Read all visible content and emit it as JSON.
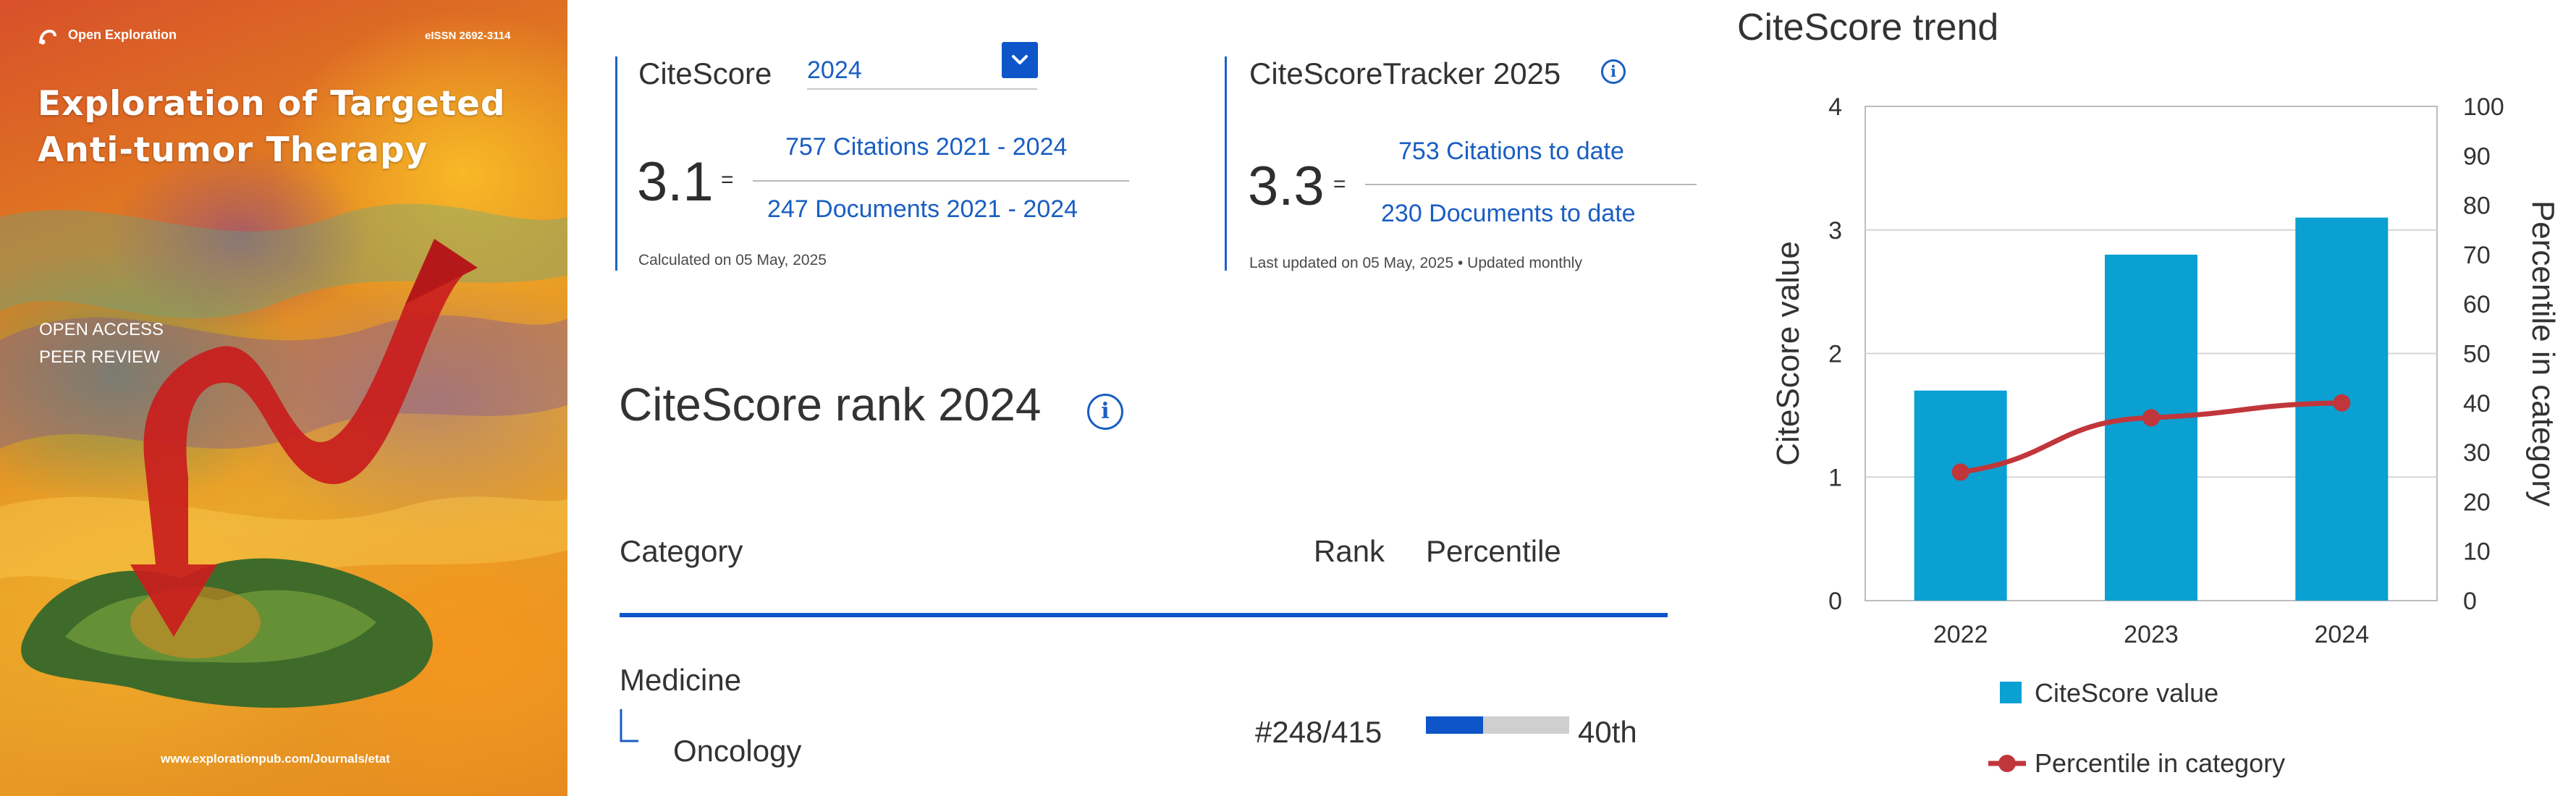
{
  "cover": {
    "publisher": "Open Exploration",
    "issn": "eISSN 2692-3114",
    "title_line1": "Exploration of Targeted",
    "title_line2": "Anti-tumor Therapy",
    "tag1": "OPEN ACCESS",
    "tag2": "PEER REVIEW",
    "url": "www.explorationpub.com/Journals/etat"
  },
  "citescore": {
    "label": "CiteScore",
    "year": "2024",
    "value": "3.1",
    "equals": "=",
    "numerator": "757 Citations 2021 - 2024",
    "denominator": "247 Documents 2021 - 2024",
    "note": "Calculated on 05 May, 2025"
  },
  "tracker": {
    "label": "CiteScoreTracker 2025",
    "value": "3.3",
    "equals": "=",
    "numerator": "753 Citations to date",
    "denominator": "230 Documents to date",
    "note": "Last updated on 05 May, 2025 • Updated monthly"
  },
  "rank": {
    "title": "CiteScore rank 2024",
    "headers": {
      "category": "Category",
      "rank": "Rank",
      "percentile": "Percentile"
    },
    "rows": [
      {
        "group": "Medicine",
        "category": "Oncology",
        "rank": "#248/415",
        "percentile_label": "40th",
        "percentile": 40
      }
    ],
    "colors": {
      "accent": "#0d55c9",
      "bar_bg": "#cfcfcf"
    }
  },
  "trend": {
    "title": "CiteScore trend"
  },
  "chart_data": {
    "type": "bar",
    "categories": [
      "2022",
      "2023",
      "2024"
    ],
    "series": [
      {
        "name": "CiteScore value",
        "type": "bar",
        "axis": "left",
        "values": [
          1.7,
          2.8,
          3.1
        ],
        "color": "#0aa0d2"
      },
      {
        "name": "Percentile in category",
        "type": "line",
        "axis": "right",
        "values": [
          26,
          37,
          40
        ],
        "color": "#c0363b"
      }
    ],
    "ylabel": "CiteScore value",
    "y2label": "Percentile in category",
    "ylim": [
      0,
      4
    ],
    "y2lim": [
      0,
      100
    ],
    "yticks": [
      "0",
      "1",
      "2",
      "3",
      "4"
    ],
    "y2ticks": [
      "0",
      "10",
      "20",
      "30",
      "40",
      "50",
      "60",
      "70",
      "80",
      "90",
      "100"
    ],
    "grid": true,
    "legend_position": "bottom"
  },
  "icons": {
    "info": "info-icon",
    "dropdown": "chevron-down-icon",
    "tree": "tree-branch-icon",
    "logo": "open-exploration-logo-icon"
  }
}
